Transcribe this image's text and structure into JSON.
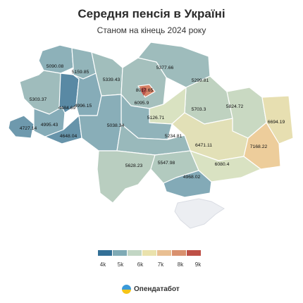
{
  "header": {
    "title": "Середня пенсія в Україні",
    "subtitle": "Станом на кінець 2024 року"
  },
  "chart_data": {
    "type": "choropleth",
    "title": "Середня пенсія в Україні",
    "subtitle": "Станом на кінець 2024 року",
    "regions": [
      {
        "id": "volyn",
        "value": "5090.08"
      },
      {
        "id": "rivne",
        "value": "5159.85"
      },
      {
        "id": "zhytomyr",
        "value": "5339.43"
      },
      {
        "id": "kyiv-oblast",
        "value": "5377.66"
      },
      {
        "id": "chernihiv",
        "value": "5299.81"
      },
      {
        "id": "lviv",
        "value": "5303.37"
      },
      {
        "id": "ternopil",
        "value": "4484.69"
      },
      {
        "id": "khmelnytskyi",
        "value": "4996.15"
      },
      {
        "id": "kyiv-city",
        "value": "8017.65"
      },
      {
        "id": "sumy",
        "value": "5703.3"
      },
      {
        "id": "kharkiv",
        "value": "5824.72"
      },
      {
        "id": "luhansk",
        "value": "6694.19"
      },
      {
        "id": "poltava",
        "value": "6095.9"
      },
      {
        "id": "cherkasy",
        "value": "5126.71"
      },
      {
        "id": "zakarpattia",
        "value": "4727.14"
      },
      {
        "id": "ivano-frankivsk",
        "value": "4995.43"
      },
      {
        "id": "chernivtsi",
        "value": "4648.04"
      },
      {
        "id": "vinnytsia",
        "value": "5038.34"
      },
      {
        "id": "kirovohrad",
        "value": "5234.81"
      },
      {
        "id": "dnipropetrovsk",
        "value": "6471.11"
      },
      {
        "id": "donetsk",
        "value": "7168.22"
      },
      {
        "id": "zaporizhzhia",
        "value": "6080.4"
      },
      {
        "id": "odesa",
        "value": "5628.23"
      },
      {
        "id": "mykolaiv",
        "value": "5547.98"
      },
      {
        "id": "kherson",
        "value": "4968.02"
      }
    ],
    "legend": {
      "ticks": [
        "4k",
        "5k",
        "6k",
        "7k",
        "8k",
        "9k"
      ],
      "colors": [
        "#336f96",
        "#7faab5",
        "#c2d6c4",
        "#eae2ac",
        "#e9bf92",
        "#d9906e",
        "#be5046"
      ]
    }
  },
  "brand": {
    "name": "Опендатабот"
  },
  "colors": {
    "crimea": "#eceef2",
    "border": "#ffffff"
  }
}
